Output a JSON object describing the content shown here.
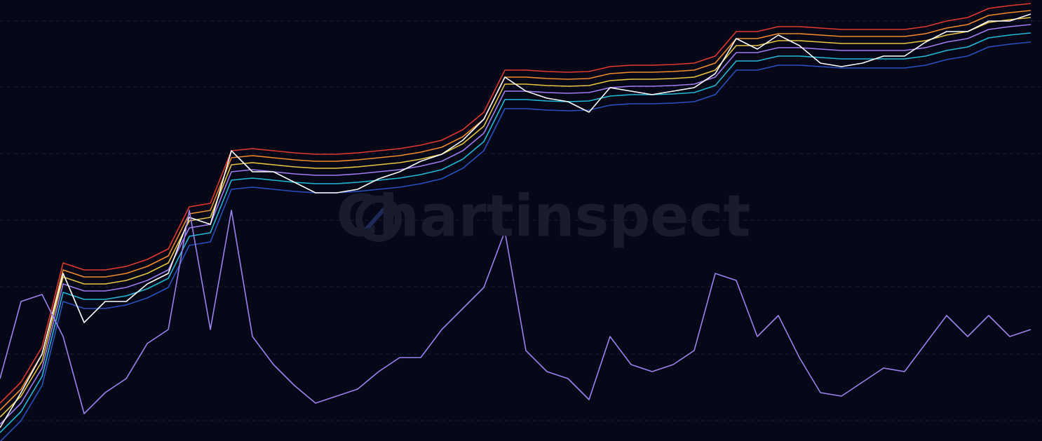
{
  "chart_data": {
    "type": "line",
    "watermark": "Chartinspect",
    "categories": [
      null,
      null,
      null,
      null,
      null,
      null,
      null,
      null,
      null,
      null,
      null,
      null,
      null,
      null,
      null,
      null,
      null,
      null,
      null,
      null,
      null,
      null,
      null,
      null,
      null,
      null,
      null,
      null,
      null,
      null,
      null,
      null,
      null,
      null,
      null,
      null,
      null,
      null,
      null,
      null,
      null,
      null,
      null,
      null,
      null,
      null,
      null,
      null,
      null,
      null
    ],
    "ylim": [
      0,
      629
    ],
    "yticks": [
      29,
      124,
      220,
      315,
      410,
      505,
      599
    ],
    "grid": true,
    "series": [
      {
        "color": "#e0392e",
        "values": [
          54,
          84,
          134,
          254,
          244,
          244,
          249,
          259,
          274,
          334,
          339,
          414,
          417,
          414,
          411,
          409,
          409,
          411,
          414,
          417,
          422,
          429,
          444,
          469,
          529,
          529,
          527,
          526,
          527,
          534,
          536,
          536,
          537,
          539,
          549,
          584,
          584,
          591,
          591,
          589,
          587,
          587,
          587,
          587,
          591,
          599,
          604,
          617,
          621,
          624
        ]
      },
      {
        "color": "#f08a2c",
        "values": [
          44,
          74,
          124,
          244,
          234,
          234,
          239,
          249,
          264,
          324,
          329,
          404,
          407,
          404,
          401,
          399,
          399,
          401,
          404,
          407,
          412,
          419,
          434,
          459,
          519,
          519,
          517,
          516,
          517,
          524,
          526,
          526,
          527,
          529,
          539,
          574,
          574,
          581,
          581,
          579,
          577,
          577,
          577,
          577,
          581,
          589,
          594,
          607,
          611,
          614
        ]
      },
      {
        "color": "#e8c440",
        "values": [
          34,
          64,
          114,
          234,
          224,
          224,
          229,
          239,
          254,
          314,
          319,
          394,
          397,
          394,
          391,
          389,
          389,
          391,
          394,
          397,
          402,
          409,
          424,
          449,
          509,
          509,
          507,
          506,
          507,
          514,
          516,
          516,
          517,
          519,
          529,
          564,
          564,
          571,
          571,
          569,
          567,
          567,
          567,
          567,
          571,
          579,
          584,
          597,
          601,
          604
        ]
      },
      {
        "color": "#a07cf0",
        "values": [
          24,
          54,
          104,
          224,
          214,
          214,
          219,
          229,
          244,
          304,
          309,
          384,
          387,
          384,
          381,
          379,
          379,
          381,
          384,
          387,
          392,
          399,
          414,
          439,
          499,
          499,
          497,
          496,
          497,
          504,
          506,
          506,
          507,
          509,
          519,
          554,
          554,
          561,
          561,
          559,
          557,
          557,
          557,
          557,
          561,
          569,
          574,
          587,
          591,
          594
        ]
      },
      {
        "color": "#22b8d8",
        "values": [
          12,
          42,
          92,
          212,
          202,
          202,
          207,
          217,
          232,
          292,
          297,
          372,
          375,
          372,
          369,
          367,
          367,
          369,
          372,
          375,
          380,
          387,
          402,
          427,
          487,
          487,
          485,
          484,
          485,
          492,
          494,
          494,
          495,
          497,
          507,
          542,
          542,
          549,
          549,
          547,
          545,
          545,
          545,
          545,
          549,
          557,
          562,
          575,
          579,
          582
        ]
      },
      {
        "color": "#2a4fc0",
        "values": [
          -1,
          29,
          79,
          199,
          189,
          189,
          194,
          204,
          219,
          279,
          284,
          359,
          362,
          359,
          356,
          354,
          354,
          356,
          359,
          362,
          367,
          374,
          389,
          414,
          474,
          474,
          472,
          471,
          472,
          479,
          481,
          481,
          482,
          484,
          494,
          529,
          529,
          536,
          536,
          534,
          532,
          532,
          532,
          532,
          536,
          544,
          549,
          562,
          566,
          569
        ]
      },
      {
        "color": "#ffffff",
        "values": [
          19,
          69,
          124,
          239,
          169,
          199,
          199,
          224,
          239,
          319,
          309,
          414,
          384,
          384,
          369,
          354,
          354,
          359,
          374,
          384,
          399,
          409,
          429,
          459,
          519,
          499,
          489,
          484,
          469,
          504,
          499,
          494,
          499,
          504,
          524,
          574,
          559,
          579,
          564,
          539,
          534,
          539,
          549,
          549,
          569,
          584,
          584,
          599,
          599,
          609
        ]
      },
      {
        "color": "#9b82f0",
        "values": [
          89,
          199,
          209,
          149,
          39,
          69,
          89,
          139,
          159,
          329,
          159,
          329,
          149,
          109,
          79,
          54,
          64,
          74,
          99,
          119,
          119,
          159,
          189,
          219,
          299,
          129,
          99,
          89,
          59,
          149,
          109,
          99,
          109,
          129,
          239,
          229,
          149,
          179,
          119,
          69,
          64,
          84,
          104,
          99,
          139,
          179,
          149,
          179,
          149,
          159
        ]
      }
    ]
  }
}
